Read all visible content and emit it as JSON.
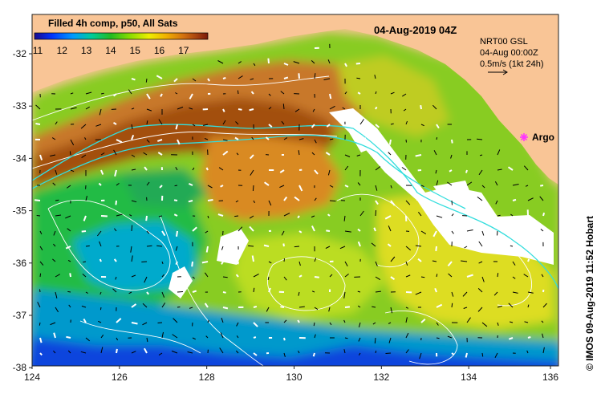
{
  "product_title": "Filled 4h comp, p50, All Sats",
  "date_title": "04-Aug-2019 04Z",
  "info": {
    "model": "NRT00 GSL",
    "datetime": "04-Aug 00:00Z",
    "scale": "0.5m/s (1kt 24h)"
  },
  "argo_label": "Argo",
  "credit": "© IMOS 09-Aug-2019 11:52 Hobart",
  "colorbar": {
    "ticks": [
      "11",
      "12",
      "13",
      "14",
      "15",
      "16",
      "17"
    ],
    "colors": [
      "#1a0a8c",
      "#0033ff",
      "#0099ff",
      "#00cc99",
      "#22bb22",
      "#88dd00",
      "#eeee00",
      "#f0b000",
      "#d27010",
      "#a44010",
      "#7a1a0a"
    ]
  },
  "axes": {
    "x_ticks": [
      "124",
      "126",
      "128",
      "130",
      "132",
      "134",
      "136"
    ],
    "y_ticks": [
      "-32",
      "-33",
      "-34",
      "-35",
      "-36",
      "-37",
      "-38"
    ]
  },
  "colors": {
    "land": "#f9c596",
    "argo_marker": "#ff33ff",
    "current_line": "#33dddd",
    "contour": "#ffffff",
    "vector": "#000000"
  }
}
